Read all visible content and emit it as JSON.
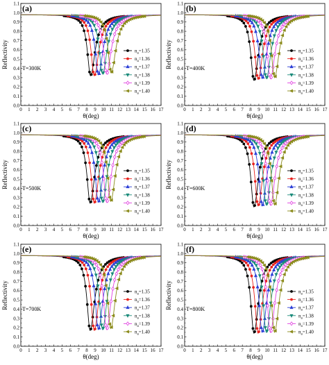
{
  "colors": {
    "n135": "#000000",
    "n136": "#e8231e",
    "n137": "#2c3fd6",
    "n138": "#1a8a7a",
    "n139": "#e040e0",
    "n140": "#8a8a1a"
  },
  "chart_data": [
    {
      "type": "line",
      "panel_label": "(a)",
      "temperature_label": "T=300K",
      "xlabel": "θ(deg)",
      "ylabel": "Reflectivity",
      "xlim": [
        0,
        17
      ],
      "ylim": [
        0,
        1.1
      ],
      "xticks": [
        "0",
        "1",
        "2",
        "3",
        "4",
        "5",
        "6",
        "7",
        "8",
        "9",
        "10",
        "11",
        "12",
        "13",
        "14",
        "15",
        "16",
        "17"
      ],
      "yticks": [
        "0.0",
        "0.1",
        "0.2",
        "0.3",
        "0.4",
        "0.5",
        "0.6",
        "0.7",
        "0.8",
        "0.9",
        "1.0",
        "1.1"
      ],
      "legend_position": "right",
      "series": [
        {
          "name": "na=1.35",
          "name_main": "n",
          "name_sub": "a",
          "name_tail": "=1.35",
          "color_key": "n135",
          "marker": "circle",
          "theta_min": 8.45,
          "r_min": 0.32
        },
        {
          "name": "na=1.36",
          "name_main": "n",
          "name_sub": "a",
          "name_tail": "=1.36",
          "color_key": "n136",
          "marker": "circle",
          "theta_min": 8.9,
          "r_min": 0.32
        },
        {
          "name": "na=1.37",
          "name_main": "n",
          "name_sub": "a",
          "name_tail": "=1.37",
          "color_key": "n137",
          "marker": "triangle",
          "theta_min": 9.4,
          "r_min": 0.33
        },
        {
          "name": "na=1.38",
          "name_main": "n",
          "name_sub": "a",
          "name_tail": "=1.38",
          "color_key": "n138",
          "marker": "triangle-down",
          "theta_min": 9.9,
          "r_min": 0.34
        },
        {
          "name": "na=1.39",
          "name_main": "n",
          "name_sub": "a",
          "name_tail": "=1.39",
          "color_key": "n139",
          "marker": "diamond",
          "theta_min": 10.4,
          "r_min": 0.34
        },
        {
          "name": "na=1.40",
          "name_main": "n",
          "name_sub": "a",
          "name_tail": "=1.40",
          "color_key": "n140",
          "marker": "triangle-left",
          "theta_min": 10.95,
          "r_min": 0.35
        }
      ]
    },
    {
      "type": "line",
      "panel_label": "(b)",
      "temperature_label": "T=400K",
      "xlabel": "θ(deg)",
      "ylabel": "Reflectivity",
      "xlim": [
        0,
        17
      ],
      "ylim": [
        0,
        1.1
      ],
      "xticks": [
        "0",
        "1",
        "2",
        "3",
        "4",
        "5",
        "6",
        "7",
        "8",
        "9",
        "10",
        "11",
        "12",
        "13",
        "14",
        "15",
        "16",
        "17"
      ],
      "yticks": [
        "0.0",
        "0.1",
        "0.2",
        "0.3",
        "0.4",
        "0.5",
        "0.6",
        "0.7",
        "0.8",
        "0.9",
        "1.0",
        "1.1"
      ],
      "legend_position": "right",
      "series": [
        {
          "name": "na=1.35",
          "name_main": "n",
          "name_sub": "a",
          "name_tail": "=1.35",
          "color_key": "n135",
          "marker": "circle",
          "theta_min": 8.4,
          "r_min": 0.27
        },
        {
          "name": "na=1.36",
          "name_main": "n",
          "name_sub": "a",
          "name_tail": "=1.36",
          "color_key": "n136",
          "marker": "circle",
          "theta_min": 8.9,
          "r_min": 0.28
        },
        {
          "name": "na=1.37",
          "name_main": "n",
          "name_sub": "a",
          "name_tail": "=1.37",
          "color_key": "n137",
          "marker": "triangle",
          "theta_min": 9.4,
          "r_min": 0.29
        },
        {
          "name": "na=1.38",
          "name_main": "n",
          "name_sub": "a",
          "name_tail": "=1.38",
          "color_key": "n138",
          "marker": "triangle-down",
          "theta_min": 9.9,
          "r_min": 0.29
        },
        {
          "name": "na=1.39",
          "name_main": "n",
          "name_sub": "a",
          "name_tail": "=1.39",
          "color_key": "n139",
          "marker": "diamond",
          "theta_min": 10.4,
          "r_min": 0.29
        },
        {
          "name": "na=1.40",
          "name_main": "n",
          "name_sub": "a",
          "name_tail": "=1.40",
          "color_key": "n140",
          "marker": "triangle-left",
          "theta_min": 10.9,
          "r_min": 0.3
        }
      ]
    },
    {
      "type": "line",
      "panel_label": "(c)",
      "temperature_label": "T=500K",
      "xlabel": "θ(deg)",
      "ylabel": "Reflectivity",
      "xlim": [
        0,
        17
      ],
      "ylim": [
        0,
        1.1
      ],
      "xticks": [
        "0",
        "1",
        "2",
        "3",
        "4",
        "5",
        "6",
        "7",
        "8",
        "9",
        "10",
        "11",
        "12",
        "13",
        "14",
        "15",
        "16",
        "17"
      ],
      "yticks": [
        "0.0",
        "0.1",
        "0.2",
        "0.3",
        "0.4",
        "0.5",
        "0.6",
        "0.7",
        "0.8",
        "0.9",
        "1.0",
        "1.1"
      ],
      "legend_position": "right",
      "series": [
        {
          "name": "na=1.35",
          "name_main": "n",
          "name_sub": "a",
          "name_tail": "=1.35",
          "color_key": "n135",
          "marker": "circle",
          "theta_min": 8.4,
          "r_min": 0.24
        },
        {
          "name": "na=1.36",
          "name_main": "n",
          "name_sub": "a",
          "name_tail": "=1.36",
          "color_key": "n136",
          "marker": "circle",
          "theta_min": 8.9,
          "r_min": 0.24
        },
        {
          "name": "na=1.37",
          "name_main": "n",
          "name_sub": "a",
          "name_tail": "=1.37",
          "color_key": "n137",
          "marker": "triangle",
          "theta_min": 9.4,
          "r_min": 0.25
        },
        {
          "name": "na=1.38",
          "name_main": "n",
          "name_sub": "a",
          "name_tail": "=1.38",
          "color_key": "n138",
          "marker": "triangle-down",
          "theta_min": 9.9,
          "r_min": 0.25
        },
        {
          "name": "na=1.39",
          "name_main": "n",
          "name_sub": "a",
          "name_tail": "=1.39",
          "color_key": "n139",
          "marker": "diamond",
          "theta_min": 10.4,
          "r_min": 0.25
        },
        {
          "name": "na=1.40",
          "name_main": "n",
          "name_sub": "a",
          "name_tail": "=1.40",
          "color_key": "n140",
          "marker": "triangle-left",
          "theta_min": 10.9,
          "r_min": 0.26
        }
      ]
    },
    {
      "type": "line",
      "panel_label": "(d)",
      "temperature_label": "T=600K",
      "xlabel": "θ(deg)",
      "ylabel": "Reflectivity",
      "xlim": [
        0,
        17
      ],
      "ylim": [
        0,
        1.1
      ],
      "xticks": [
        "0",
        "1",
        "2",
        "3",
        "4",
        "5",
        "6",
        "7",
        "8",
        "9",
        "10",
        "11",
        "12",
        "13",
        "14",
        "15",
        "16",
        "17"
      ],
      "yticks": [
        "0.0",
        "0.1",
        "0.2",
        "0.3",
        "0.4",
        "0.5",
        "0.6",
        "0.7",
        "0.8",
        "0.9",
        "1.0",
        "1.1"
      ],
      "legend_position": "right",
      "series": [
        {
          "name": "na=1.35",
          "name_main": "n",
          "name_sub": "a",
          "name_tail": "=1.35",
          "color_key": "n135",
          "marker": "circle",
          "theta_min": 8.4,
          "r_min": 0.2
        },
        {
          "name": "na=1.36",
          "name_main": "n",
          "name_sub": "a",
          "name_tail": "=1.36",
          "color_key": "n136",
          "marker": "circle",
          "theta_min": 8.9,
          "r_min": 0.21
        },
        {
          "name": "na=1.37",
          "name_main": "n",
          "name_sub": "a",
          "name_tail": "=1.37",
          "color_key": "n137",
          "marker": "triangle",
          "theta_min": 9.4,
          "r_min": 0.21
        },
        {
          "name": "na=1.38",
          "name_main": "n",
          "name_sub": "a",
          "name_tail": "=1.38",
          "color_key": "n138",
          "marker": "triangle-down",
          "theta_min": 9.9,
          "r_min": 0.22
        },
        {
          "name": "na=1.39",
          "name_main": "n",
          "name_sub": "a",
          "name_tail": "=1.39",
          "color_key": "n139",
          "marker": "diamond",
          "theta_min": 10.4,
          "r_min": 0.22
        },
        {
          "name": "na=1.40",
          "name_main": "n",
          "name_sub": "a",
          "name_tail": "=1.40",
          "color_key": "n140",
          "marker": "triangle-left",
          "theta_min": 10.9,
          "r_min": 0.22
        }
      ]
    },
    {
      "type": "line",
      "panel_label": "(e)",
      "temperature_label": "T=700K",
      "xlabel": "θ(deg)",
      "ylabel": "Reflectivity",
      "xlim": [
        0,
        17
      ],
      "ylim": [
        0,
        1.1
      ],
      "xticks": [
        "0",
        "1",
        "2",
        "3",
        "4",
        "5",
        "6",
        "7",
        "8",
        "9",
        "10",
        "11",
        "12",
        "13",
        "14",
        "15",
        "16",
        "17"
      ],
      "yticks": [
        "0.0",
        "0.1",
        "0.2",
        "0.3",
        "0.4",
        "0.5",
        "0.6",
        "0.7",
        "0.8",
        "0.9",
        "1.0",
        "1.1"
      ],
      "legend_position": "right",
      "series": [
        {
          "name": "na=1.35",
          "name_main": "n",
          "name_sub": "a",
          "name_tail": "=1.35",
          "color_key": "n135",
          "marker": "circle",
          "theta_min": 8.4,
          "r_min": 0.17
        },
        {
          "name": "na=1.36",
          "name_main": "n",
          "name_sub": "a",
          "name_tail": "=1.36",
          "color_key": "n136",
          "marker": "circle",
          "theta_min": 8.9,
          "r_min": 0.17
        },
        {
          "name": "na=1.37",
          "name_main": "n",
          "name_sub": "a",
          "name_tail": "=1.37",
          "color_key": "n137",
          "marker": "triangle",
          "theta_min": 9.4,
          "r_min": 0.18
        },
        {
          "name": "na=1.38",
          "name_main": "n",
          "name_sub": "a",
          "name_tail": "=1.38",
          "color_key": "n138",
          "marker": "triangle-down",
          "theta_min": 9.9,
          "r_min": 0.18
        },
        {
          "name": "na=1.39",
          "name_main": "n",
          "name_sub": "a",
          "name_tail": "=1.39",
          "color_key": "n139",
          "marker": "diamond",
          "theta_min": 10.4,
          "r_min": 0.18
        },
        {
          "name": "na=1.40",
          "name_main": "n",
          "name_sub": "a",
          "name_tail": "=1.40",
          "color_key": "n140",
          "marker": "triangle-left",
          "theta_min": 10.9,
          "r_min": 0.19
        }
      ]
    },
    {
      "type": "line",
      "panel_label": "(f)",
      "temperature_label": "T=800K",
      "xlabel": "θ(deg)",
      "ylabel": "Reflectivity",
      "xlim": [
        0,
        17
      ],
      "ylim": [
        0,
        1.1
      ],
      "xticks": [
        "0",
        "1",
        "2",
        "3",
        "4",
        "5",
        "6",
        "7",
        "8",
        "9",
        "10",
        "11",
        "12",
        "13",
        "14",
        "15",
        "16",
        "17"
      ],
      "yticks": [
        "0.0",
        "0.1",
        "0.2",
        "0.3",
        "0.4",
        "0.5",
        "0.6",
        "0.7",
        "0.8",
        "0.9",
        "1.0",
        "1.1"
      ],
      "legend_position": "right",
      "series": [
        {
          "name": "na=1.35",
          "name_main": "n",
          "name_sub": "a",
          "name_tail": "=1.35",
          "color_key": "n135",
          "marker": "circle",
          "theta_min": 8.4,
          "r_min": 0.14
        },
        {
          "name": "na=1.36",
          "name_main": "n",
          "name_sub": "a",
          "name_tail": "=1.36",
          "color_key": "n136",
          "marker": "circle",
          "theta_min": 8.9,
          "r_min": 0.14
        },
        {
          "name": "na=1.37",
          "name_main": "n",
          "name_sub": "a",
          "name_tail": "=1.37",
          "color_key": "n137",
          "marker": "triangle",
          "theta_min": 9.4,
          "r_min": 0.15
        },
        {
          "name": "na=1.38",
          "name_main": "n",
          "name_sub": "a",
          "name_tail": "=1.38",
          "color_key": "n138",
          "marker": "triangle-down",
          "theta_min": 9.9,
          "r_min": 0.15
        },
        {
          "name": "na=1.39",
          "name_main": "n",
          "name_sub": "a",
          "name_tail": "=1.39",
          "color_key": "n139",
          "marker": "diamond",
          "theta_min": 10.4,
          "r_min": 0.15
        },
        {
          "name": "na=1.40",
          "name_main": "n",
          "name_sub": "a",
          "name_tail": "=1.40",
          "color_key": "n140",
          "marker": "triangle-left",
          "theta_min": 10.9,
          "r_min": 0.15
        }
      ]
    }
  ]
}
